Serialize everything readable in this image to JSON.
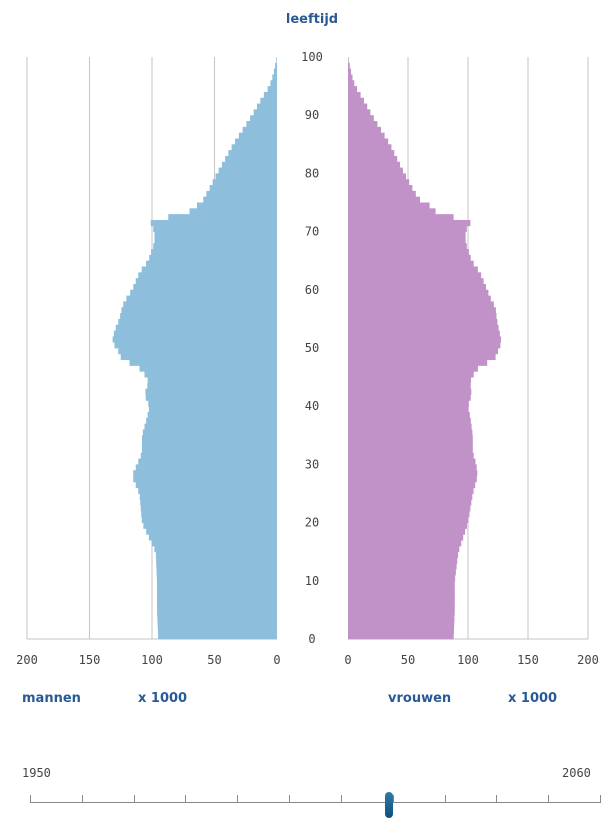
{
  "chart_data": {
    "type": "population-pyramid",
    "title": "leeftijd",
    "age_axis": {
      "min": 0,
      "max": 100,
      "ticks": [
        0,
        10,
        20,
        30,
        40,
        50,
        60,
        70,
        80,
        90,
        100
      ]
    },
    "value_axis": {
      "min": 0,
      "max": 200,
      "ticks": [
        0,
        50,
        100,
        150,
        200
      ]
    },
    "left_label": "mannen",
    "right_label": "vrouwen",
    "unit": "x 1000",
    "men_color": "#8dbedb",
    "women_color": "#c192c8",
    "age_keypoints": [
      0,
      5,
      10,
      15,
      20,
      25,
      28,
      30,
      32,
      35,
      38,
      40,
      42,
      44,
      45,
      47,
      48,
      50,
      51,
      53,
      55,
      57,
      58,
      60,
      63,
      65,
      67,
      68,
      70,
      71,
      72,
      73,
      74,
      75,
      76,
      77,
      80,
      85,
      90,
      93,
      95,
      97,
      100
    ],
    "men_keypoints": [
      95,
      96,
      96,
      97,
      108,
      110,
      116,
      112,
      108,
      108,
      104,
      102,
      106,
      103,
      104,
      112,
      124,
      128,
      132,
      130,
      126,
      124,
      122,
      116,
      110,
      103,
      100,
      98,
      98,
      100,
      102,
      72,
      68,
      60,
      58,
      55,
      48,
      35,
      20,
      12,
      6,
      3,
      0
    ],
    "women_keypoints": [
      88,
      89,
      89,
      92,
      100,
      104,
      108,
      107,
      104,
      104,
      102,
      100,
      103,
      102,
      103,
      110,
      122,
      126,
      128,
      126,
      124,
      123,
      120,
      116,
      110,
      103,
      100,
      98,
      98,
      100,
      104,
      72,
      74,
      62,
      58,
      55,
      47,
      35,
      20,
      12,
      6,
      3,
      0
    ]
  },
  "slider": {
    "start_label": "1950",
    "end_label": "2060",
    "current_fraction": 0.63
  }
}
